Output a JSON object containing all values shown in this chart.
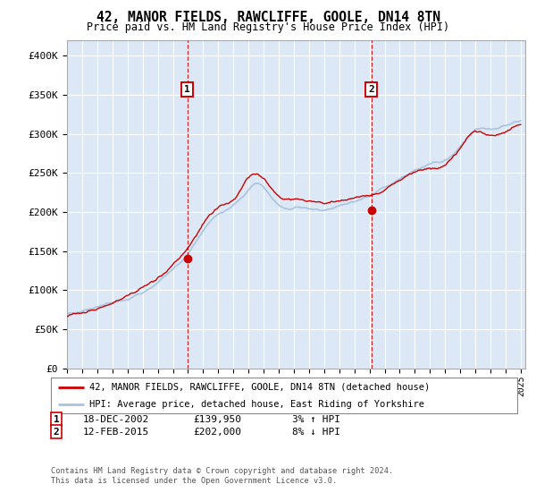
{
  "title": "42, MANOR FIELDS, RAWCLIFFE, GOOLE, DN14 8TN",
  "subtitle": "Price paid vs. HM Land Registry's House Price Index (HPI)",
  "ylim": [
    0,
    420000
  ],
  "yticks": [
    0,
    50000,
    100000,
    150000,
    200000,
    250000,
    300000,
    350000,
    400000
  ],
  "ytick_labels": [
    "£0",
    "£50K",
    "£100K",
    "£150K",
    "£200K",
    "£250K",
    "£300K",
    "£350K",
    "£400K"
  ],
  "sale1_date": 2002.96,
  "sale1_price": 139950,
  "sale1_info": "18-DEC-2002",
  "sale1_amount": "£139,950",
  "sale1_hpi": "3% ↑ HPI",
  "sale2_date": 2015.12,
  "sale2_price": 202000,
  "sale2_info": "12-FEB-2015",
  "sale2_amount": "£202,000",
  "sale2_hpi": "8% ↓ HPI",
  "hpi_color": "#a8c4e0",
  "price_color": "#cc0000",
  "vline_color": "#cc0000",
  "plot_bg": "#dce8f5",
  "legend_line1": "42, MANOR FIELDS, RAWCLIFFE, GOOLE, DN14 8TN (detached house)",
  "legend_line2": "HPI: Average price, detached house, East Riding of Yorkshire",
  "footer1": "Contains HM Land Registry data © Crown copyright and database right 2024.",
  "footer2": "This data is licensed under the Open Government Licence v3.0."
}
